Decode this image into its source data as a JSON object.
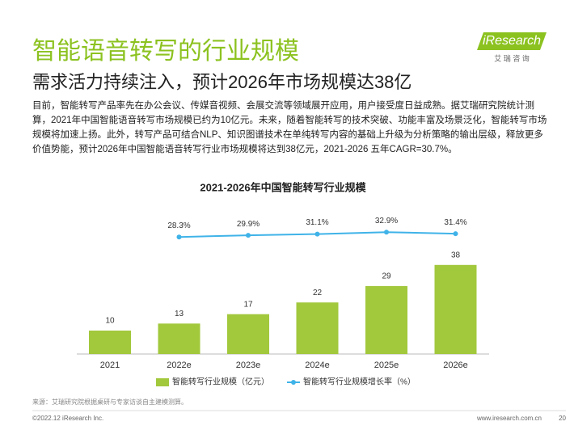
{
  "header": {
    "title": "智能语音转写的行业规模",
    "subtitle": "需求活力持续注入，预计2026年市场规模达38亿",
    "logo": "iResearch",
    "logo_sub": "艾 瑞 咨 询"
  },
  "body": "目前，智能转写产品率先在办公会议、传媒音视频、会展交流等领域展开应用，用户接受度日益成熟。据艾瑞研究院统计测算，2021年中国智能语音转写市场规模已约为10亿元。未来，随着智能转写的技术突破、功能丰富及场景泛化，智能转写市场规模将加速上扬。此外，转写产品可结合NLP、知识图谱技术在单纯转写内容的基础上升级为分析策略的输出层级，释放更多价值势能，预计2026年中国智能语音转写行业市场规模将达到38亿元，2021-2026 五年CAGR=30.7%。",
  "chart_data": {
    "type": "bar",
    "title": "2021-2026年中国智能转写行业规模",
    "categories": [
      "2021",
      "2022e",
      "2023e",
      "2024e",
      "2025e",
      "2026e"
    ],
    "series": [
      {
        "name": "智能转写行业规模（亿元）",
        "type": "bar",
        "color": "#a2c83c",
        "values": [
          10,
          13,
          17,
          22,
          29,
          38
        ]
      },
      {
        "name": "智能转写行业规模增长率（%）",
        "type": "line",
        "color": "#3fb3e8",
        "values": [
          null,
          28.3,
          29.9,
          31.1,
          32.9,
          31.4
        ],
        "value_labels": [
          null,
          "28.3%",
          "29.9%",
          "31.1%",
          "32.9%",
          "31.4%"
        ]
      }
    ]
  },
  "footer": {
    "source": "来源：艾瑞研究院根据桌研与专家访谈自主建模测算。",
    "copyright": "©2022.12 iResearch Inc.",
    "url": "www.iresearch.com.cn",
    "page": "20"
  }
}
